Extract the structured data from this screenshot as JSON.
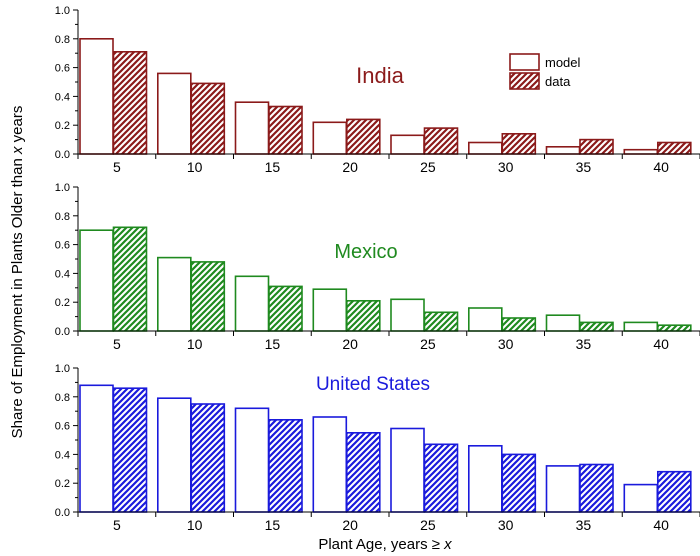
{
  "figure": {
    "ylabel_prefix": "Share of Employment in Plants Older than ",
    "ylabel_var": "x",
    "ylabel_suffix": " years",
    "xlabel_prefix": "Plant Age, years ",
    "xlabel_op": "≥",
    "xlabel_var": "x"
  },
  "legend": {
    "model_label": "model",
    "data_label": "data"
  },
  "chart_data": [
    {
      "type": "bar",
      "title": "India",
      "color": "#8b1a1a",
      "categories": [
        "5",
        "10",
        "15",
        "20",
        "25",
        "30",
        "35",
        "40"
      ],
      "ylim": [
        0,
        1.0
      ],
      "yticks": [
        "0.0",
        "0.2",
        "0.4",
        "0.6",
        "0.8",
        "1.0"
      ],
      "series": [
        {
          "name": "model",
          "values": [
            0.8,
            0.56,
            0.36,
            0.22,
            0.13,
            0.08,
            0.05,
            0.03
          ]
        },
        {
          "name": "data",
          "values": [
            0.71,
            0.49,
            0.33,
            0.24,
            0.18,
            0.14,
            0.1,
            0.08
          ]
        }
      ]
    },
    {
      "type": "bar",
      "title": "Mexico",
      "color": "#1f8a1f",
      "categories": [
        "5",
        "10",
        "15",
        "20",
        "25",
        "30",
        "35",
        "40"
      ],
      "ylim": [
        0,
        1.0
      ],
      "yticks": [
        "0.0",
        "0.2",
        "0.4",
        "0.6",
        "0.8",
        "1.0"
      ],
      "series": [
        {
          "name": "model",
          "values": [
            0.7,
            0.51,
            0.38,
            0.29,
            0.22,
            0.16,
            0.11,
            0.06
          ]
        },
        {
          "name": "data",
          "values": [
            0.72,
            0.48,
            0.31,
            0.21,
            0.13,
            0.09,
            0.06,
            0.04
          ]
        }
      ]
    },
    {
      "type": "bar",
      "title": "United States",
      "color": "#1a1adc",
      "categories": [
        "5",
        "10",
        "15",
        "20",
        "25",
        "30",
        "35",
        "40"
      ],
      "ylim": [
        0,
        1.0
      ],
      "yticks": [
        "0.0",
        "0.2",
        "0.4",
        "0.6",
        "0.8",
        "1.0"
      ],
      "series": [
        {
          "name": "model",
          "values": [
            0.88,
            0.79,
            0.72,
            0.66,
            0.58,
            0.46,
            0.32,
            0.19
          ]
        },
        {
          "name": "data",
          "values": [
            0.86,
            0.75,
            0.64,
            0.55,
            0.47,
            0.4,
            0.33,
            0.28
          ]
        }
      ]
    }
  ]
}
